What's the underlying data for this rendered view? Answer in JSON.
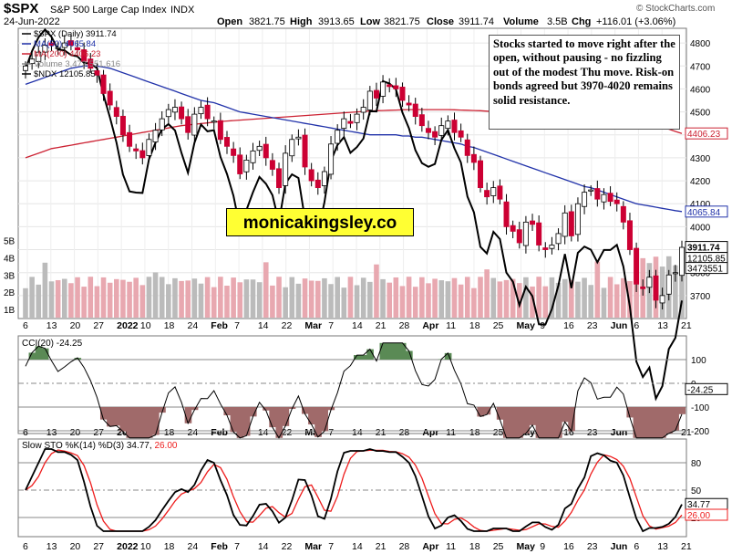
{
  "header": {
    "symbol": "$SPX",
    "name": "S&P 500 Large Cap Index",
    "exchange": "INDX",
    "date": "24-Jun-2022",
    "open_label": "Open",
    "open": "3821.75",
    "high_label": "High",
    "high": "3913.65",
    "low_label": "Low",
    "low": "3821.75",
    "close_label": "Close",
    "close": "3911.74",
    "volume_label": "Volume",
    "volume": "3.5B",
    "chg_label": "Chg",
    "chg": "+116.01 (+3.06%)",
    "credit": "© StockCharts.com"
  },
  "annotation": "Stocks started to move right after the open, without pausing - no fizzling out of the modest Thu move. Risk-on bonds agreed but 3970-4020 remains solid resistance.",
  "watermark": "monicakingsley.co",
  "colors": {
    "up": "#ffffff",
    "down": "#cc0033",
    "ma50": "#2233aa",
    "ma200": "#cc2233",
    "ndx": "#000000",
    "vol_up": "#bbbbbb",
    "vol_down": "#e8a8b0",
    "cci_pos": "#5a8a55",
    "cci_neg": "#a06a6a",
    "sto_k": "#000000",
    "sto_d": "#ee1c1c"
  },
  "chart_data": [
    {
      "type": "candlestick",
      "title": "$SPX (Daily) 3911.74",
      "legend": [
        {
          "name": "$SPX (Daily)",
          "value": "3911.74",
          "color": "#000000"
        },
        {
          "name": "MA(50)",
          "value": "4065.84",
          "color": "#2233aa"
        },
        {
          "name": "MA(200)",
          "value": "4406.23",
          "color": "#cc2233"
        },
        {
          "name": "Volume",
          "value": "3,473,551,616",
          "color": "#888888"
        },
        {
          "name": "$NDX",
          "value": "12105.85",
          "color": "#000000"
        }
      ],
      "x_ticks": [
        "6",
        "13",
        "20",
        "27",
        "2022",
        "10",
        "18",
        "24",
        "Feb",
        "7",
        "14",
        "22",
        "Mar",
        "7",
        "14",
        "21",
        "28",
        "Apr",
        "11",
        "18",
        "25",
        "May",
        "9",
        "16",
        "23",
        "Jun",
        "6",
        "13",
        "21"
      ],
      "y_ticks": [
        3700,
        3800,
        3900,
        4000,
        4100,
        4200,
        4300,
        4400,
        4500,
        4600,
        4700,
        4800
      ],
      "ylim": [
        3620,
        4860
      ],
      "volume_ticks": [
        "1B",
        "2B",
        "3B",
        "4B",
        "5B"
      ],
      "value_tags": [
        {
          "label": "4406.23",
          "color": "#cc2233"
        },
        {
          "label": "4065.84",
          "color": "#2233aa"
        },
        {
          "label": "3911.74",
          "color": "#000000"
        },
        {
          "label": "12105.85",
          "color": "#000000"
        },
        {
          "label": "3473551",
          "color": "#000000"
        }
      ],
      "close": [
        4700,
        4730,
        4760,
        4790,
        4790,
        4780,
        4800,
        4790,
        4770,
        4720,
        4690,
        4660,
        4580,
        4530,
        4480,
        4400,
        4350,
        4330,
        4300,
        4380,
        4420,
        4470,
        4510,
        4520,
        4470,
        4410,
        4490,
        4520,
        4470,
        4460,
        4380,
        4350,
        4310,
        4230,
        4290,
        4330,
        4350,
        4300,
        4250,
        4170,
        4320,
        4380,
        4390,
        4260,
        4200,
        4170,
        4240,
        4360,
        4420,
        4470,
        4450,
        4490,
        4520,
        4590,
        4560,
        4630,
        4610,
        4600,
        4550,
        4530,
        4480,
        4440,
        4410,
        4390,
        4440,
        4460,
        4410,
        4390,
        4310,
        4280,
        4170,
        4130,
        4170,
        4120,
        4000,
        3980,
        3930,
        4020,
        4010,
        3920,
        3900,
        3920,
        3970,
        4060,
        3960,
        4100,
        4150,
        4160,
        4120,
        4140,
        4110,
        4100,
        4020,
        3900,
        3750,
        3730,
        3780,
        3680,
        3700,
        3790,
        3800,
        3910
      ],
      "ma50": [
        4620,
        4630,
        4640,
        4650,
        4660,
        4670,
        4680,
        4690,
        4695,
        4700,
        4700,
        4700,
        4695,
        4690,
        4680,
        4670,
        4660,
        4650,
        4640,
        4630,
        4620,
        4610,
        4600,
        4590,
        4580,
        4570,
        4560,
        4550,
        4545,
        4540,
        4530,
        4520,
        4510,
        4500,
        4495,
        4490,
        4485,
        4480,
        4475,
        4470,
        4465,
        4460,
        4455,
        4450,
        4445,
        4440,
        4435,
        4430,
        4425,
        4420,
        4415,
        4410,
        4405,
        4400,
        4400,
        4400,
        4400,
        4400,
        4395,
        4395,
        4390,
        4390,
        4385,
        4380,
        4375,
        4370,
        4365,
        4360,
        4350,
        4345,
        4335,
        4325,
        4315,
        4305,
        4295,
        4285,
        4275,
        4265,
        4255,
        4245,
        4235,
        4225,
        4215,
        4205,
        4195,
        4185,
        4175,
        4170,
        4160,
        4150,
        4140,
        4130,
        4120,
        4110,
        4100,
        4095,
        4090,
        4085,
        4080,
        4075,
        4070,
        4065.84
      ],
      "ma200": [
        4300,
        4310,
        4320,
        4330,
        4340,
        4345,
        4350,
        4355,
        4360,
        4365,
        4370,
        4375,
        4380,
        4385,
        4390,
        4395,
        4400,
        4405,
        4410,
        4415,
        4420,
        4425,
        4430,
        4435,
        4440,
        4443,
        4446,
        4449,
        4452,
        4455,
        4458,
        4460,
        4462,
        4464,
        4466,
        4468,
        4470,
        4472,
        4474,
        4476,
        4478,
        4480,
        4482,
        4484,
        4486,
        4488,
        4490,
        4492,
        4494,
        4496,
        4498,
        4500,
        4502,
        4504,
        4505,
        4506,
        4507,
        4508,
        4509,
        4510,
        4510,
        4510,
        4510,
        4510,
        4510,
        4510,
        4509,
        4508,
        4507,
        4506,
        4505,
        4503,
        4501,
        4499,
        4497,
        4495,
        4493,
        4491,
        4489,
        4487,
        4485,
        4483,
        4481,
        4479,
        4477,
        4475,
        4473,
        4471,
        4469,
        4467,
        4465,
        4462,
        4459,
        4456,
        4453,
        4448,
        4443,
        4438,
        4433,
        4425,
        4415,
        4406.23
      ]
    },
    {
      "type": "line",
      "title": "CCI(20) -24.25",
      "y_ticks": [
        -200,
        -100,
        0,
        100
      ],
      "value_tags": [
        "-24.25"
      ],
      "x_ticks": [
        "6",
        "13",
        "20",
        "27",
        "2022",
        "10",
        "18",
        "24",
        "Feb",
        "7",
        "14",
        "22",
        "Mar",
        "7",
        "14",
        "21",
        "28",
        "Apr",
        "11",
        "18",
        "25",
        "May",
        "9",
        "16",
        "23",
        "Jun",
        "6",
        "13",
        "21"
      ]
    },
    {
      "type": "line",
      "title": "Slow STO %K(14) %D(3) 34.77, 26.00",
      "series": [
        {
          "name": "%K(14)",
          "value": "34.77",
          "color": "#000000"
        },
        {
          "name": "%D(3)",
          "value": "26.00",
          "color": "#ee1c1c"
        }
      ],
      "y_ticks": [
        20,
        50,
        80
      ],
      "value_tags": [
        "34.77",
        "26.00"
      ],
      "x_ticks": [
        "6",
        "13",
        "20",
        "27",
        "2022",
        "10",
        "18",
        "24",
        "Feb",
        "7",
        "14",
        "22",
        "Mar",
        "7",
        "14",
        "21",
        "28",
        "Apr",
        "11",
        "18",
        "25",
        "May",
        "9",
        "16",
        "23",
        "Jun",
        "6",
        "13",
        "21"
      ]
    }
  ]
}
